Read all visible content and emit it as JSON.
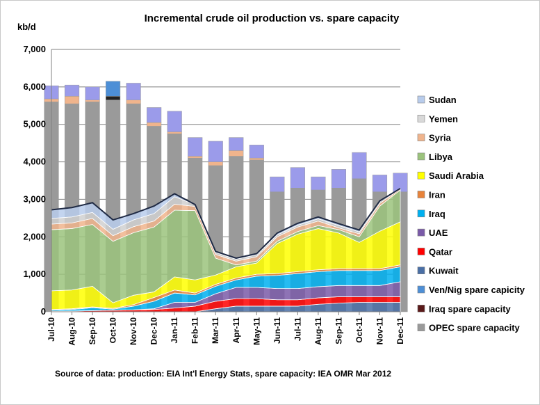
{
  "chart_data": {
    "type": "area",
    "title": "Incremental crude oil production vs. spare capacity",
    "ylabel": "kb/d",
    "xlabel": "",
    "source": "Source of data:  production: EIA Int'l Energy Stats, spare capacity: IEA OMR Mar 2012",
    "ylim": [
      0,
      7000
    ],
    "yticks": [
      "0",
      "1,000",
      "2,000",
      "3,000",
      "4,000",
      "5,000",
      "6,000",
      "7,000"
    ],
    "grid": true,
    "legend_position": "right",
    "categories": [
      "Jul-10",
      "Aug-10",
      "Sep-10",
      "Oct-10",
      "Nov-10",
      "Dec-10",
      "Jan-11",
      "Feb-11",
      "Mar-11",
      "Apr-11",
      "May-11",
      "Jun-11",
      "Jul-11",
      "Aug-11",
      "Sep-11",
      "Oct-11",
      "Nov-11",
      "Dec-11"
    ],
    "production_series": [
      {
        "name": "Kuwait",
        "color": "#4a6fa5",
        "values": [
          0,
          0,
          0,
          0,
          0,
          0,
          0,
          0,
          80,
          150,
          150,
          150,
          150,
          200,
          230,
          250,
          250,
          250
        ]
      },
      {
        "name": "Qatar",
        "color": "#ff0000",
        "values": [
          10,
          20,
          30,
          40,
          50,
          60,
          100,
          150,
          200,
          200,
          200,
          170,
          170,
          170,
          170,
          150,
          150,
          150
        ]
      },
      {
        "name": "UAE",
        "color": "#7a5aa8",
        "values": [
          0,
          0,
          0,
          0,
          0,
          20,
          150,
          100,
          200,
          300,
          300,
          300,
          300,
          300,
          300,
          300,
          300,
          400
        ]
      },
      {
        "name": "Iraq",
        "color": "#00b0f0",
        "values": [
          30,
          40,
          80,
          30,
          100,
          200,
          250,
          200,
          200,
          200,
          300,
          350,
          400,
          400,
          400,
          400,
          400,
          400
        ]
      },
      {
        "name": "Iran",
        "color": "#e8833a",
        "values": [
          20,
          20,
          20,
          20,
          40,
          100,
          80,
          50,
          50,
          50,
          50,
          50,
          50,
          50,
          50,
          50,
          50,
          50
        ]
      },
      {
        "name": "Saudi Arabia",
        "color": "#ffff00",
        "values": [
          500,
          500,
          550,
          150,
          250,
          150,
          350,
          350,
          250,
          300,
          300,
          800,
          1000,
          1100,
          950,
          700,
          1000,
          1150
        ]
      },
      {
        "name": "Libya",
        "color": "#9bc37c",
        "values": [
          1630,
          1640,
          1650,
          1640,
          1670,
          1730,
          1780,
          1850,
          450,
          50,
          50,
          60,
          70,
          80,
          90,
          150,
          670,
          850
        ]
      },
      {
        "name": "Syria",
        "color": "#f0b48c",
        "values": [
          150,
          150,
          160,
          150,
          160,
          160,
          160,
          110,
          100,
          100,
          120,
          120,
          120,
          120,
          50,
          80,
          70,
          30
        ]
      },
      {
        "name": "Yemen",
        "color": "#d0d0d0",
        "values": [
          150,
          160,
          160,
          170,
          180,
          200,
          200,
          50,
          50,
          50,
          50,
          50,
          50,
          60,
          60,
          50,
          50,
          10
        ]
      },
      {
        "name": "Sudan",
        "color": "#b8ccec",
        "values": [
          230,
          250,
          260,
          250,
          170,
          200,
          80,
          0,
          30,
          30,
          30,
          50,
          50,
          50,
          50,
          50,
          20,
          0
        ]
      }
    ],
    "spare_series": [
      {
        "name": "OPEC spare capacity",
        "color": "#9a9a9a",
        "values": [
          5600,
          5550,
          5600,
          5650,
          5550,
          4950,
          4750,
          4100,
          3900,
          4150,
          4050,
          3200,
          3300,
          3250,
          3300,
          3550,
          3200,
          3200
        ]
      },
      {
        "name": "Iraq spare capacity",
        "color": "#222222",
        "values": [
          0,
          0,
          0,
          100,
          0,
          0,
          0,
          0,
          0,
          0,
          0,
          0,
          0,
          0,
          0,
          0,
          0,
          0
        ]
      },
      {
        "name": "Ven/Nig spare capicity",
        "color": "#4d8fd6",
        "values": [
          0,
          0,
          0,
          400,
          0,
          0,
          0,
          0,
          0,
          0,
          0,
          0,
          0,
          0,
          0,
          0,
          0,
          0
        ]
      },
      {
        "name": "Kuwait",
        "color": "#4a6fa5",
        "values": [
          0,
          0,
          0,
          0,
          0,
          0,
          0,
          0,
          0,
          0,
          0,
          0,
          0,
          0,
          0,
          0,
          0,
          0
        ]
      },
      {
        "name": "Qatar",
        "color": "#ff0000",
        "values": [
          0,
          0,
          0,
          0,
          0,
          0,
          0,
          0,
          0,
          0,
          0,
          0,
          0,
          0,
          0,
          0,
          0,
          0
        ]
      },
      {
        "name": "UAE",
        "color": "#7a5aa8",
        "values": [
          0,
          0,
          0,
          0,
          0,
          0,
          0,
          0,
          0,
          0,
          0,
          0,
          0,
          0,
          0,
          0,
          0,
          0
        ]
      },
      {
        "name": "Iraq",
        "color": "#00b0f0",
        "values": [
          0,
          0,
          0,
          0,
          0,
          0,
          0,
          0,
          0,
          0,
          0,
          0,
          0,
          0,
          0,
          0,
          0,
          0
        ]
      },
      {
        "name": "Iran",
        "color": "#e8833a",
        "values": [
          0,
          0,
          0,
          0,
          0,
          0,
          0,
          0,
          0,
          0,
          0,
          0,
          0,
          0,
          0,
          0,
          0,
          0
        ]
      },
      {
        "name": "Saudi Arabia",
        "color": "#ffff00",
        "values": [
          0,
          0,
          0,
          0,
          0,
          0,
          0,
          0,
          0,
          0,
          0,
          0,
          0,
          0,
          0,
          0,
          0,
          0
        ]
      },
      {
        "name": "Libya",
        "color": "#9bc37c",
        "values": [
          0,
          0,
          0,
          0,
          0,
          0,
          0,
          0,
          0,
          0,
          0,
          0,
          0,
          0,
          0,
          0,
          0,
          0
        ]
      },
      {
        "name": "Syria",
        "color": "#f0b48c",
        "values": [
          80,
          200,
          50,
          0,
          100,
          100,
          50,
          50,
          100,
          150,
          50,
          0,
          0,
          0,
          0,
          0,
          0,
          0
        ]
      },
      {
        "name": "Yemen",
        "color": "#a04a6a",
        "values": [
          0,
          0,
          0,
          0,
          0,
          0,
          0,
          0,
          0,
          0,
          0,
          0,
          0,
          0,
          0,
          0,
          0,
          0
        ]
      },
      {
        "name": "Sudan",
        "color": "#9b9bea",
        "values": [
          350,
          300,
          350,
          0,
          450,
          400,
          550,
          500,
          550,
          350,
          350,
          400,
          550,
          350,
          500,
          700,
          450,
          500
        ]
      }
    ],
    "legend": [
      {
        "name": "Sudan",
        "color": "#b8ccec"
      },
      {
        "name": "Yemen",
        "color": "#d9d9d9"
      },
      {
        "name": "Syria",
        "color": "#f0b48c"
      },
      {
        "name": "Libya",
        "color": "#9bc37c"
      },
      {
        "name": "Saudi Arabia",
        "color": "#ffff00"
      },
      {
        "name": "Iran",
        "color": "#e8833a"
      },
      {
        "name": "Iraq",
        "color": "#00b0f0"
      },
      {
        "name": "UAE",
        "color": "#7a5aa8"
      },
      {
        "name": "Qatar",
        "color": "#ff0000"
      },
      {
        "name": "Kuwait",
        "color": "#4a6fa5"
      },
      {
        "name": "Ven/Nig spare capicity",
        "color": "#4d8fd6"
      },
      {
        "name": "Iraq spare capacity",
        "color": "#5a1a1a"
      },
      {
        "name": "OPEC spare capacity",
        "color": "#9a9a9a"
      }
    ]
  }
}
